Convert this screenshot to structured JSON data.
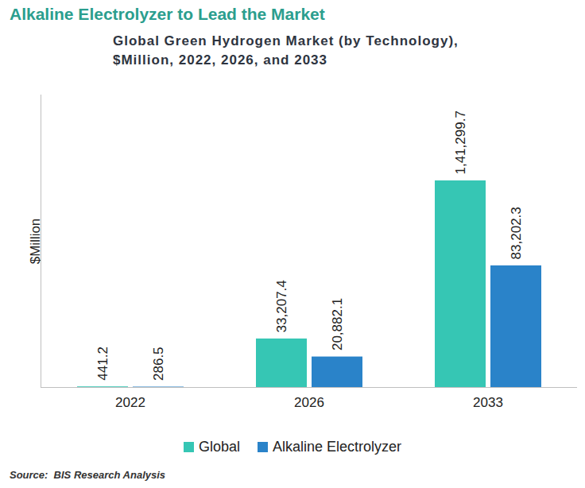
{
  "chart_data": {
    "type": "bar",
    "title": "Alkaline Electrolyzer to Lead the Market",
    "subtitle": "Global Green Hydrogen Market (by Technology), $Million, 2022, 2026, and 2033",
    "source": "Source:  BIS Research Analysis",
    "y_label": "$Million",
    "categories": [
      "2022",
      "2026",
      "2033"
    ],
    "series": [
      {
        "name": "Global",
        "color": "#36c6b4",
        "values": [
          441.2,
          33207.4,
          141299.7
        ],
        "value_labels": [
          "441.2",
          "33,207.4",
          "1,41,299.7"
        ]
      },
      {
        "name": "Alkaline Electrolyzer",
        "color": "#2a83c9",
        "values": [
          286.5,
          20882.1,
          83202.3
        ],
        "value_labels": [
          "286.5",
          "20,882.1",
          "83,202.3"
        ]
      }
    ],
    "ylim": [
      0,
      200000
    ],
    "yticks": [
      0
    ],
    "grid": false,
    "legend": "bottom",
    "data_labels": true,
    "tick_labels": "x"
  }
}
